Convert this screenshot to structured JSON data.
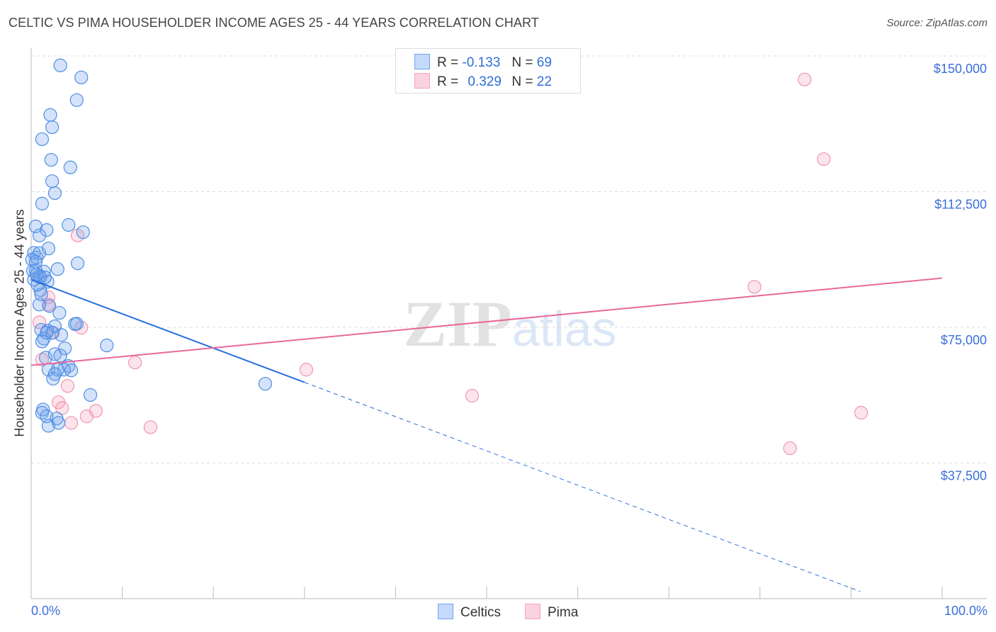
{
  "title": "CELTIC VS PIMA HOUSEHOLDER INCOME AGES 25 - 44 YEARS CORRELATION CHART",
  "source": "Source: ZipAtlas.com",
  "watermark": "ZIPatlas",
  "legend": {
    "r_label": "R =",
    "n_label": "N =",
    "rows": [
      {
        "r": "-0.133",
        "n": "69"
      },
      {
        "r": "0.329",
        "n": "22"
      }
    ]
  },
  "colors": {
    "celtics": "#6fa3ea",
    "pima": "#f4a5bd",
    "celtics_line": "#2a6dd8",
    "pima_line": "#e8699a"
  },
  "chart_data": {
    "type": "scatter",
    "title": "CELTIC VS PIMA HOUSEHOLDER INCOME AGES 25 - 44 YEARS CORRELATION CHART",
    "xlabel": "",
    "ylabel": "Householder Income Ages 25 - 44 years",
    "xlim": [
      0,
      100
    ],
    "ylim": [
      0,
      150000
    ],
    "x_tick_labels": [
      "0.0%",
      "100.0%"
    ],
    "y_ticks": [
      37500,
      75000,
      112500,
      150000
    ],
    "y_tick_labels": [
      "$37,500",
      "$75,000",
      "$112,500",
      "$150,000"
    ],
    "grid": true,
    "legend_position": "bottom",
    "series": [
      {
        "name": "Celtics",
        "trend": {
          "x": [
            0,
            30
          ],
          "y": [
            88200,
            59800
          ],
          "extend_to": [
            91,
            2000
          ]
        },
        "points": [
          [
            3.2,
            147400
          ],
          [
            5.5,
            144060
          ],
          [
            5.0,
            137800
          ],
          [
            2.1,
            133700
          ],
          [
            2.3,
            130300
          ],
          [
            1.2,
            127000
          ],
          [
            2.2,
            121300
          ],
          [
            4.3,
            119200
          ],
          [
            2.3,
            115400
          ],
          [
            2.6,
            112100
          ],
          [
            1.2,
            109200
          ],
          [
            4.1,
            103300
          ],
          [
            5.7,
            101300
          ],
          [
            0.5,
            102900
          ],
          [
            1.7,
            101900
          ],
          [
            0.9,
            100400
          ],
          [
            1.9,
            96800
          ],
          [
            0.3,
            95600
          ],
          [
            0.6,
            94300
          ],
          [
            5.1,
            92700
          ],
          [
            2.9,
            91100
          ],
          [
            1.4,
            90400
          ],
          [
            0.5,
            90700
          ],
          [
            0.9,
            89200
          ],
          [
            1.8,
            87600
          ],
          [
            1.0,
            85300
          ],
          [
            1.1,
            84100
          ],
          [
            2.0,
            80900
          ],
          [
            3.1,
            79000
          ],
          [
            0.9,
            81300
          ],
          [
            4.8,
            75900
          ],
          [
            2.6,
            75300
          ],
          [
            5.0,
            76000
          ],
          [
            1.8,
            74100
          ],
          [
            1.1,
            74300
          ],
          [
            3.3,
            72900
          ],
          [
            2.3,
            73500
          ],
          [
            1.4,
            71900
          ],
          [
            1.2,
            71100
          ],
          [
            8.3,
            70000
          ],
          [
            3.7,
            69200
          ],
          [
            1.6,
            66600
          ],
          [
            2.6,
            67600
          ],
          [
            3.2,
            67200
          ],
          [
            1.9,
            63300
          ],
          [
            4.1,
            64300
          ],
          [
            2.9,
            63300
          ],
          [
            3.6,
            63300
          ],
          [
            4.4,
            63100
          ],
          [
            2.4,
            60800
          ],
          [
            6.5,
            56300
          ],
          [
            25.7,
            59400
          ],
          [
            1.3,
            52300
          ],
          [
            1.2,
            51400
          ],
          [
            1.7,
            50400
          ],
          [
            2.8,
            49800
          ],
          [
            3.0,
            48600
          ],
          [
            1.9,
            47800
          ],
          [
            0.9,
            95500
          ],
          [
            0.1,
            93700
          ],
          [
            0.2,
            90600
          ],
          [
            0.3,
            88200
          ],
          [
            0.7,
            86800
          ],
          [
            0.5,
            93100
          ],
          [
            1.7,
            73500
          ],
          [
            1.0,
            88800
          ],
          [
            1.5,
            88800
          ],
          [
            0.6,
            89600
          ],
          [
            2.6,
            62100
          ]
        ]
      },
      {
        "name": "Pima",
        "trend": {
          "x": [
            0,
            100
          ],
          "y": [
            64500,
            88600
          ]
        },
        "points": [
          [
            84.9,
            143500
          ],
          [
            87.0,
            121500
          ],
          [
            5.1,
            100400
          ],
          [
            79.4,
            86200
          ],
          [
            1.9,
            83300
          ],
          [
            1.9,
            81300
          ],
          [
            0.9,
            76400
          ],
          [
            5.5,
            74900
          ],
          [
            2.4,
            73500
          ],
          [
            1.2,
            66100
          ],
          [
            11.4,
            65300
          ],
          [
            30.2,
            63300
          ],
          [
            4.0,
            58800
          ],
          [
            48.4,
            56100
          ],
          [
            3.0,
            54300
          ],
          [
            3.4,
            52700
          ],
          [
            7.1,
            51900
          ],
          [
            6.1,
            50400
          ],
          [
            4.4,
            48600
          ],
          [
            13.1,
            47400
          ],
          [
            91.1,
            51400
          ],
          [
            83.3,
            41600
          ]
        ]
      }
    ]
  }
}
